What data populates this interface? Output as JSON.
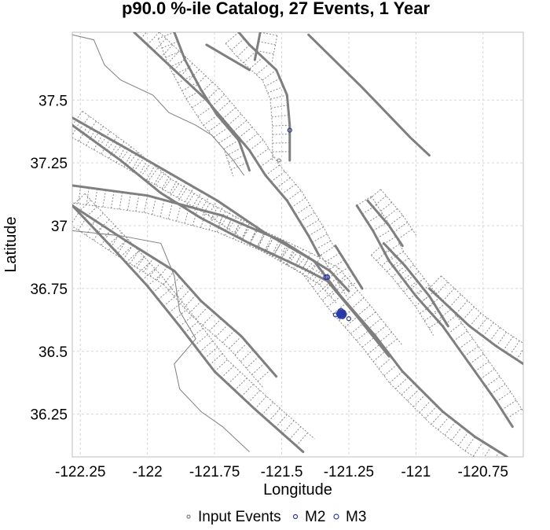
{
  "chart_data": {
    "type": "scatter",
    "title": "p90.0 %-ile Catalog, 27 Events, 1 Year",
    "xlabel": "Longitude",
    "ylabel": "Latitude",
    "xlim": [
      -122.28,
      -120.6
    ],
    "ylim": [
      36.08,
      37.77
    ],
    "x_ticks": [
      {
        "value": -122.25,
        "label": "-122.25"
      },
      {
        "value": -122.0,
        "label": "-122"
      },
      {
        "value": -121.75,
        "label": "-121.75"
      },
      {
        "value": -121.5,
        "label": "-121.5"
      },
      {
        "value": -121.25,
        "label": "-121.25"
      },
      {
        "value": -121.0,
        "label": "-121"
      },
      {
        "value": -120.75,
        "label": "-120.75"
      }
    ],
    "y_ticks": [
      {
        "value": 36.25,
        "label": "36.25"
      },
      {
        "value": 36.5,
        "label": "36.5"
      },
      {
        "value": 36.75,
        "label": "36.75"
      },
      {
        "value": 37.0,
        "label": "37"
      },
      {
        "value": 37.25,
        "label": "37.25"
      },
      {
        "value": 37.5,
        "label": "37.5"
      }
    ],
    "grid": true,
    "legend_position": "bottom",
    "series": [
      {
        "name": "Input Events",
        "color": "#808080",
        "size": 2,
        "points": [
          [
            -121.51,
            37.26
          ]
        ]
      },
      {
        "name": "M2",
        "color": "#2d3b8c",
        "size": 2.5,
        "points": [
          [
            -121.47,
            37.38
          ],
          [
            -121.3,
            36.645
          ],
          [
            -121.25,
            36.63
          ],
          [
            -121.28,
            36.64
          ],
          [
            -121.27,
            36.65
          ]
        ]
      },
      {
        "name": "M3",
        "color": "#2a3aa8",
        "size": 3,
        "points": [
          [
            -121.335,
            36.795
          ],
          [
            -121.33,
            36.795
          ],
          [
            -121.285,
            36.645
          ],
          [
            -121.28,
            36.648
          ],
          [
            -121.278,
            36.652
          ],
          [
            -121.275,
            36.645
          ],
          [
            -121.272,
            36.65
          ],
          [
            -121.27,
            36.643
          ],
          [
            -121.282,
            36.64
          ],
          [
            -121.276,
            36.656
          ],
          [
            -121.279,
            36.661
          ],
          [
            -121.268,
            36.647
          ],
          [
            -121.273,
            36.639
          ],
          [
            -121.284,
            36.652
          ],
          [
            -121.277,
            36.648
          ],
          [
            -121.281,
            36.646
          ],
          [
            -121.274,
            36.653
          ],
          [
            -121.271,
            36.655
          ],
          [
            -121.287,
            36.649
          ],
          [
            -121.283,
            36.657
          ],
          [
            -121.269,
            36.651
          ]
        ]
      }
    ],
    "faults": [
      [
        [
          -122.28,
          37.43
        ],
        [
          -122.0,
          37.26
        ],
        [
          -121.74,
          37.1
        ],
        [
          -121.56,
          36.97
        ],
        [
          -121.38,
          36.86
        ],
        [
          -121.28,
          36.72
        ],
        [
          -121.15,
          36.56
        ],
        [
          -121.05,
          36.42
        ],
        [
          -120.9,
          36.26
        ],
        [
          -120.78,
          36.16
        ],
        [
          -120.66,
          36.08
        ]
      ],
      [
        [
          -122.28,
          37.4
        ],
        [
          -122.1,
          37.26
        ],
        [
          -121.95,
          37.13
        ],
        [
          -121.8,
          37.03
        ],
        [
          -121.62,
          36.93
        ],
        [
          -121.42,
          36.83
        ],
        [
          -121.33,
          36.78
        ],
        [
          -121.22,
          36.64
        ],
        [
          -121.1,
          36.48
        ]
      ],
      [
        [
          -122.28,
          37.16
        ],
        [
          -122.0,
          37.12
        ],
        [
          -121.72,
          37.04
        ],
        [
          -121.5,
          36.94
        ],
        [
          -121.32,
          36.82
        ],
        [
          -121.25,
          36.74
        ]
      ],
      [
        [
          -122.28,
          37.08
        ],
        [
          -122.12,
          36.9
        ],
        [
          -122.0,
          36.76
        ],
        [
          -121.88,
          36.6
        ],
        [
          -121.75,
          36.42
        ],
        [
          -121.6,
          36.27
        ],
        [
          -121.42,
          36.1
        ]
      ],
      [
        [
          -122.28,
          37.08
        ],
        [
          -122.08,
          36.94
        ],
        [
          -121.9,
          36.82
        ],
        [
          -121.8,
          36.7
        ],
        [
          -121.65,
          36.56
        ],
        [
          -121.52,
          36.4
        ]
      ],
      [
        [
          -122.05,
          37.77
        ],
        [
          -121.9,
          37.62
        ],
        [
          -121.78,
          37.5
        ],
        [
          -121.7,
          37.4
        ],
        [
          -121.62,
          37.3
        ],
        [
          -121.56,
          37.2
        ],
        [
          -121.48,
          37.1
        ],
        [
          -121.4,
          36.96
        ],
        [
          -121.36,
          36.88
        ]
      ],
      [
        [
          -121.9,
          37.77
        ],
        [
          -121.86,
          37.66
        ],
        [
          -121.8,
          37.54
        ],
        [
          -121.74,
          37.44
        ],
        [
          -121.66,
          37.34
        ],
        [
          -121.62,
          37.22
        ]
      ],
      [
        [
          -121.58,
          37.77
        ],
        [
          -121.6,
          37.66
        ]
      ],
      [
        [
          -121.66,
          37.77
        ],
        [
          -121.62,
          37.72
        ],
        [
          -121.52,
          37.62
        ],
        [
          -121.48,
          37.52
        ],
        [
          -121.47,
          37.4
        ],
        [
          -121.47,
          37.26
        ]
      ],
      [
        [
          -121.22,
          37.08
        ],
        [
          -121.16,
          36.98
        ],
        [
          -121.1,
          36.86
        ],
        [
          -121.0,
          36.72
        ],
        [
          -120.9,
          36.6
        ],
        [
          -120.82,
          36.48
        ],
        [
          -120.7,
          36.3
        ],
        [
          -120.64,
          36.2
        ]
      ],
      [
        [
          -121.3,
          36.92
        ],
        [
          -121.2,
          36.75
        ]
      ],
      [
        [
          -121.18,
          37.1
        ],
        [
          -121.1,
          37.0
        ],
        [
          -121.05,
          36.92
        ]
      ],
      [
        [
          -121.12,
          36.93
        ],
        [
          -121.04,
          36.84
        ],
        [
          -120.95,
          36.72
        ],
        [
          -120.88,
          36.6
        ]
      ],
      [
        [
          -120.95,
          36.75
        ],
        [
          -120.8,
          36.6
        ],
        [
          -120.7,
          36.52
        ],
        [
          -120.6,
          36.45
        ]
      ],
      [
        [
          -121.78,
          37.72
        ],
        [
          -121.62,
          37.62
        ]
      ],
      [
        [
          -121.4,
          37.76
        ],
        [
          -121.2,
          37.55
        ],
        [
          -121.02,
          37.35
        ],
        [
          -120.95,
          37.28
        ]
      ]
    ]
  }
}
